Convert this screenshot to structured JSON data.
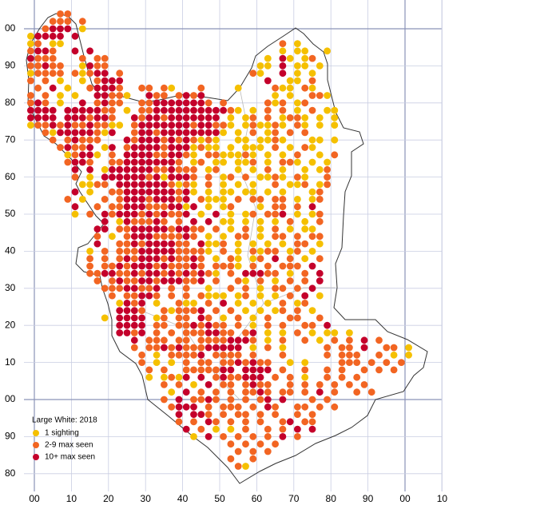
{
  "legend": {
    "title": "Large White:  2018",
    "items": [
      {
        "label": "1 sighting",
        "color": "#f5c000"
      },
      {
        "label": "2-9 max seen",
        "color": "#f26522"
      },
      {
        "label": "10+ max seen",
        "color": "#c4002b"
      }
    ]
  },
  "axes": {
    "x_labels": [
      "00",
      "10",
      "20",
      "30",
      "40",
      "50",
      "60",
      "70",
      "80",
      "90",
      "00",
      "10"
    ],
    "y_labels": [
      "00",
      "90",
      "80",
      "70",
      "60",
      "50",
      "40",
      "30",
      "20",
      "10",
      "00",
      "90",
      "80"
    ]
  },
  "tetrad_rows": [
    "....22",
    "...222.2",
    "..2333.1",
    "13333.3",
    "12.11.............................2.1",
    "2332..3.3.........................1.11..1",
    "3222...2.22.....................1.31.12",
    "22322..1322....................11.3.11.1",
    "12222.21233.2.................21..3.1.1",
    "2.2.1..1.2333...................3..11.2",
    ".2.3.1..23332..22.21...2....1....211.21",
    "2.2.1.1..33221..322.2323.........1.1..221",
    "232.1..3.2322..2233333332.2.....212.12",
    "3333.3333322.1.22333333333321.1.2.2.1.2.11",
    "3333.3332332..323323333333.1.12.2.1221.1.1",
    "1223232232211.23333333233221.121121.21.1.1",
    "..2133333213..2332333333331.1.2.12.2.2...",
    "...2.23222...3233323232121..11.1121...11.1",
    "....23223.13.2333323331211.1.111.2.1.21",
    ".....12331.2.3333223321.2211121.1.1.2..1.2",
    ".....2332..2233333332.12.11.112.1.221.1.1",
    "......3.3.1333333223222.12..1.1.2.1..1.12",
    "......2.1.3333332313332.2.12.2.1121.21..2",
    ".......1122.33333332121.2.1.1.1..2.112.12",
    "......3.1..223333333231.1.11.11.1.1...12",
    ".....2.1..2.2333233323.2111.2.22.22.1.12",
    "......3..2.223332223313.1.12...1.22.2.3.",
    "......1.2.323332323223.1.3.1.12.223.1.12",
    "..........3.1322232.2.3.3.11.1.1.1.2.1.2",
    ".........33.223333323322.2.1.2.1.2.1.11.",
    ".........2.1.2333222232.1.1.22.1.22.2.22",
    ".........3..2232333322.3112.1.1.1.1.22.1",
    "........1.2.2223333322221.2.1.2122.12.1.",
    "........2.2.232333232232.1.21.12.3.2.1.2",
    "........2.22323332322232.2221.2.2.222.3.",
    "........223322323323232321.2.33322.1.2.3",
    ".........2.2322332333223.2..21.2.1.2.2.3",
    "..........22233223.2.2..1..2.2.1.22.2.3",
    "...........2.22332.2.2.2111.12.1.1.2.3.1",
    "............1323.1..211.2.3.1.1.1.2.12",
    "............3332..212223.2.2.1.1.12.2.1",
    "..........1.3333.12.22.32.1.2.1.2..22..2",
    "............3333.22.2232322.2.1.2.2..22.3",
    "............3323.2.2.2223322.23.1.1.2.1.11.1",
    "..............3.222.22.22223332.1.2..2.1.2.2.3.2",
    "..............2.2232322233333.1.2.1.....2.22.3..22.1",
    "...............2.1.22223.2222.2...2.....2.222..2.1.1",
    "...............2.1.1.2.22.2232322..1.1....222.2.2.2",
    "................2.2..2222233.3333.2..2..2.2..2.2.2",
    "................1.1213.3.2322333.2.2.1..2.2.2",
    "..................2.2.1.3.22.2322..2.2.2.2.2.2",
    "...................1.3.2.2.2.2232.22.2.3.2..2.2",
    "..................2.3.2232.2.2.23.3...2.2",
    "...................2333.2.222.2.32..22.2.2",
    "....................3.332.2.22.2.2..2.2",
    "....................2.2.32.2.2.2..23.22",
    ".....................3.2.1.1.2..2.2.3.3",
    "......................1.3.2.2.2.2.3.2",
    "...........................2.2.2.2",
    "............................2.2.2",
    "...........................2..2",
    "............................21"
  ]
}
